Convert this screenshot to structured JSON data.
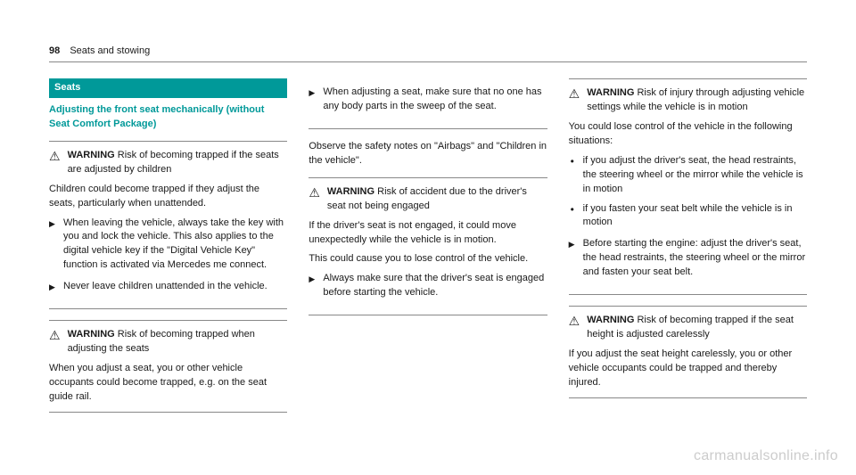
{
  "header": {
    "page_number": "98",
    "chapter": "Seats and stowing"
  },
  "col1": {
    "section_title": "Seats",
    "subheading": "Adjusting the front seat mechanically (without Seat Comfort Package)",
    "warn1": {
      "label": "WARNING",
      "title_rest": " Risk of becoming trapped if the seats are adjusted by children",
      "para1": "Children could become trapped if they adjust the seats, particularly when unattended.",
      "action1": "When leaving the vehicle, always take the key with you and lock the vehicle. This also applies to the digital vehicle key if the \"Digital Vehicle Key\" function is activated via Mercedes me connect.",
      "action2": "Never leave children unattended in the vehicle."
    },
    "warn2": {
      "label": "WARNING",
      "title_rest": " Risk of becoming trapped when adjusting the seats",
      "para1": "When you adjust a seat, you or other vehicle occupants could become trapped, e.g. on the seat guide rail."
    }
  },
  "col2": {
    "action_top": "When adjusting a seat, make sure that no one has any body parts in the sweep of the seat.",
    "observe": "Observe the safety notes on \"Airbags\" and \"Children in the vehicle\".",
    "warn3": {
      "label": "WARNING",
      "title_rest": " Risk of accident due to the driver's seat not being engaged",
      "para1": "If the driver's seat is not engaged, it could move unexpectedly while the vehicle is in motion.",
      "para2": "This could cause you to lose control of the vehicle.",
      "action1": "Always make sure that the driver's seat is engaged before starting the vehicle."
    }
  },
  "col3": {
    "warn4": {
      "label": "WARNING",
      "title_rest": " Risk of injury through adjusting vehicle settings while the vehicle is in motion",
      "para_lead": "You could lose control of the vehicle in the following situations:",
      "bullet1": "if you adjust the driver's seat, the head restraints, the steering wheel or the mirror while the vehicle is in motion",
      "bullet2": "if you fasten your seat belt while the vehicle is in motion",
      "action1": "Before starting the engine: adjust the driver's seat, the head restraints, the steering wheel or the mirror and fasten your seat belt."
    },
    "warn5": {
      "label": "WARNING",
      "title_rest": " Risk of becoming trapped if the seat height is adjusted carelessly",
      "para1": "If you adjust the seat height carelessly, you or other vehicle occupants could be trapped and thereby injured."
    }
  },
  "watermark": "carmanualsonline.info"
}
